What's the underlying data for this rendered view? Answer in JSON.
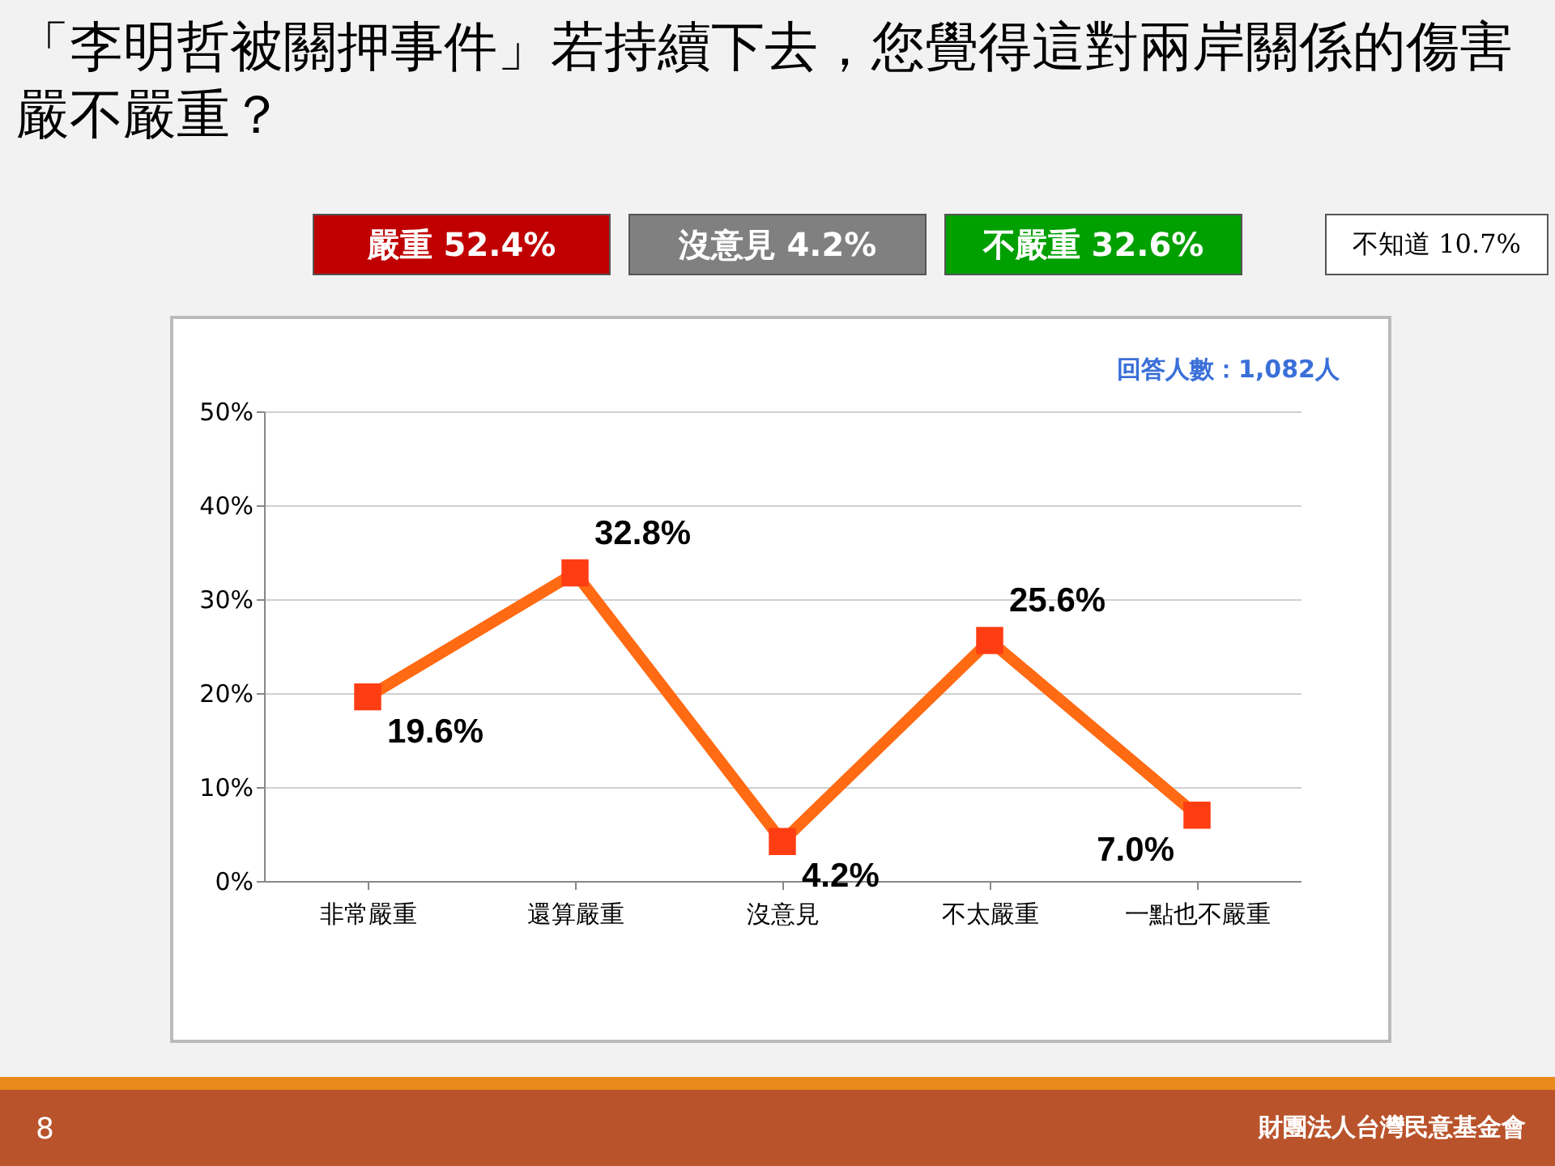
{
  "chart_data": {
    "type": "line",
    "title": "「李明哲被關押事件」若持續下去，您覺得這對兩岸關係的傷害嚴不嚴重？",
    "categories": [
      "非常嚴重",
      "還算嚴重",
      "沒意見",
      "不太嚴重",
      "一點也不嚴重"
    ],
    "series": [
      {
        "color": "#ff6a13",
        "values": [
          19.6,
          32.8,
          4.2,
          25.6,
          7.0
        ],
        "value_labels": [
          "19.6%",
          "32.8%",
          "4.2%",
          "25.6%",
          "7.0%"
        ]
      }
    ],
    "ylim": [
      0,
      50
    ],
    "yticks": [
      {
        "value": 0,
        "label": "0%"
      },
      {
        "value": 10,
        "label": "10%"
      },
      {
        "value": 20,
        "label": "20%"
      },
      {
        "value": 30,
        "label": "30%"
      },
      {
        "value": 40,
        "label": "40%"
      },
      {
        "value": 50,
        "label": "50%"
      }
    ],
    "grid": "y",
    "marker": "square",
    "line_style": "solid",
    "annotations": [
      "嚴重 52.4%",
      "沒意見 4.2%",
      "不嚴重 32.6%",
      "不知道 10.7%",
      "回答人數：1,082人",
      "8",
      "財團法人台灣民意基金會"
    ]
  }
}
